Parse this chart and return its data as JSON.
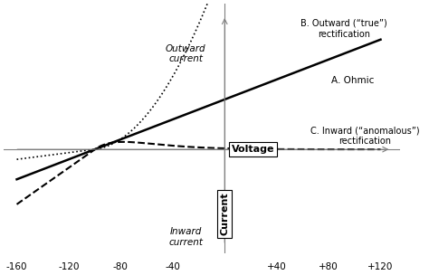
{
  "title": "",
  "xlabel_text": "Voltage",
  "ylabel_text": "Current",
  "outward_label": "Outward\ncurrent",
  "inward_label": "Inward\ncurrent",
  "xlim": [
    -170,
    135
  ],
  "ylim": [
    -2.5,
    3.5
  ],
  "xticks": [
    -160,
    -120,
    -80,
    -40,
    0,
    40,
    80,
    120
  ],
  "xtick_labels": [
    "-160",
    "-120",
    "-80",
    "-40",
    "",
    "+40",
    "+80",
    "+120"
  ],
  "reversal_v": -100,
  "label_A": "A. Ohmic",
  "label_B": "B. Outward (“true”)\nrectification",
  "label_C": "C. Inward (“anomalous”)\nrectification",
  "background_color": "#ffffff",
  "line_color": "#000000"
}
